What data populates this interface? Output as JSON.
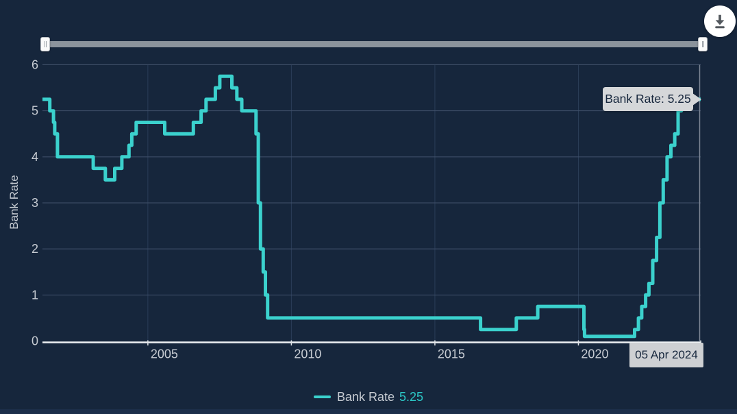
{
  "colors": {
    "background": "#16263c",
    "footer_strip": "#1c2e4a",
    "accent_line": "#3bd1cd",
    "legend_value": "#2cc7c6",
    "grid_line": "#42526b",
    "vertical_grid_line": "#2a3d58",
    "axis_line": "#eef1f4",
    "tick_mark": "#dfe3e7",
    "axis_label": "#c6cbd2",
    "crosshair": "#7b8594",
    "tooltip_bg": "#d5d7d9",
    "tooltip_text": "#16263c",
    "slider_track": "#8b939c",
    "download_icon": "#53585e"
  },
  "icons": {
    "download": "download-arrow-with-tray"
  },
  "yaxis": {
    "title": "Bank Rate"
  },
  "tooltip": {
    "text": "Bank Rate: 5.25"
  },
  "crosshair_label": "05 Apr 2024",
  "legend": {
    "label": "Bank Rate",
    "value": "5.25"
  },
  "chart_data": {
    "type": "line",
    "step": "after",
    "title": "",
    "xlabel": "",
    "ylabel": "Bank Rate",
    "ylim": [
      0,
      6
    ],
    "yticks": [
      0,
      1,
      2,
      3,
      4,
      5,
      6
    ],
    "xticks_years": [
      2005,
      2010,
      2015,
      2020
    ],
    "x_domain": [
      "2001-05-01",
      "2024-04-05"
    ],
    "grid": true,
    "legend_position": "bottom",
    "series": [
      {
        "name": "Bank Rate",
        "color": "#3bd1cd",
        "last_value": 5.25,
        "last_date_label": "05 Apr 2024",
        "points": [
          [
            "2001-05-10",
            5.25
          ],
          [
            "2001-08-02",
            5.0
          ],
          [
            "2001-09-18",
            4.75
          ],
          [
            "2001-10-04",
            4.5
          ],
          [
            "2001-11-08",
            4.0
          ],
          [
            "2003-02-06",
            3.75
          ],
          [
            "2003-07-10",
            3.5
          ],
          [
            "2003-11-06",
            3.75
          ],
          [
            "2004-02-05",
            4.0
          ],
          [
            "2004-05-06",
            4.25
          ],
          [
            "2004-06-10",
            4.5
          ],
          [
            "2004-08-05",
            4.75
          ],
          [
            "2005-08-04",
            4.5
          ],
          [
            "2006-08-03",
            4.75
          ],
          [
            "2006-11-09",
            5.0
          ],
          [
            "2007-01-11",
            5.25
          ],
          [
            "2007-05-10",
            5.5
          ],
          [
            "2007-07-05",
            5.75
          ],
          [
            "2007-12-06",
            5.5
          ],
          [
            "2008-02-07",
            5.25
          ],
          [
            "2008-04-10",
            5.0
          ],
          [
            "2008-10-08",
            4.5
          ],
          [
            "2008-11-06",
            3.0
          ],
          [
            "2008-12-04",
            2.0
          ],
          [
            "2009-01-08",
            1.5
          ],
          [
            "2009-02-05",
            1.0
          ],
          [
            "2009-03-05",
            0.5
          ],
          [
            "2016-08-04",
            0.25
          ],
          [
            "2017-11-02",
            0.5
          ],
          [
            "2018-08-02",
            0.75
          ],
          [
            "2020-03-11",
            0.25
          ],
          [
            "2020-03-19",
            0.1
          ],
          [
            "2021-12-16",
            0.25
          ],
          [
            "2022-02-03",
            0.5
          ],
          [
            "2022-03-17",
            0.75
          ],
          [
            "2022-05-05",
            1.0
          ],
          [
            "2022-06-16",
            1.25
          ],
          [
            "2022-08-04",
            1.75
          ],
          [
            "2022-09-22",
            2.25
          ],
          [
            "2022-11-03",
            3.0
          ],
          [
            "2022-12-15",
            3.5
          ],
          [
            "2023-02-02",
            4.0
          ],
          [
            "2023-03-23",
            4.25
          ],
          [
            "2023-05-11",
            4.5
          ],
          [
            "2023-06-22",
            5.0
          ],
          [
            "2023-08-03",
            5.25
          ],
          [
            "2024-04-05",
            5.25
          ]
        ]
      }
    ]
  }
}
